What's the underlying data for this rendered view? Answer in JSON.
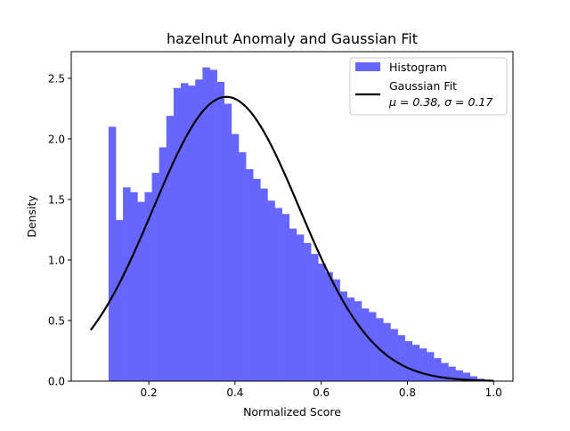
{
  "chart_data": {
    "type": "bar",
    "title": "hazelnut Anomaly and Gaussian Fit",
    "xlabel": "Normalized Score",
    "ylabel": "Density",
    "xlim": [
      0.02,
      1.045
    ],
    "ylim": [
      0,
      2.72
    ],
    "x_ticks": [
      "0.2",
      "0.4",
      "0.6",
      "0.8",
      "1.0"
    ],
    "x_tick_values": [
      0.2,
      0.4,
      0.6,
      0.8,
      1.0
    ],
    "y_ticks": [
      "0.0",
      "0.5",
      "1.0",
      "1.5",
      "2.0",
      "2.5"
    ],
    "y_tick_values": [
      0.0,
      0.5,
      1.0,
      1.5,
      2.0,
      2.5
    ],
    "grid": false,
    "legend": {
      "position": "upper-right",
      "entries": [
        {
          "label": "Histogram",
          "kind": "patch",
          "color": "#6666ff"
        },
        {
          "label": "Gaussian Fit",
          "kind": "line",
          "color": "#000000",
          "sublabel": "μ = 0.38,  σ = 0.17"
        }
      ]
    },
    "histogram": {
      "name": "Histogram",
      "color": "#6666ff",
      "bin_start": 0.1065,
      "bin_width": 0.01677,
      "values": [
        2.1,
        1.33,
        1.6,
        1.56,
        1.48,
        1.56,
        1.72,
        1.93,
        2.19,
        2.42,
        2.46,
        2.44,
        2.49,
        2.59,
        2.57,
        2.47,
        2.29,
        2.04,
        1.89,
        1.75,
        1.67,
        1.59,
        1.49,
        1.43,
        1.38,
        1.26,
        1.21,
        1.14,
        1.05,
        0.97,
        0.9,
        0.84,
        0.74,
        0.69,
        0.66,
        0.6,
        0.57,
        0.52,
        0.48,
        0.43,
        0.38,
        0.33,
        0.3,
        0.27,
        0.24,
        0.19,
        0.15,
        0.12,
        0.09,
        0.07,
        0.04,
        0.02
      ]
    },
    "gaussian_fit": {
      "name": "Gaussian Fit",
      "color": "#000000",
      "mu": 0.38,
      "sigma": 0.17,
      "x_range": [
        0.065,
        1.0
      ]
    }
  }
}
